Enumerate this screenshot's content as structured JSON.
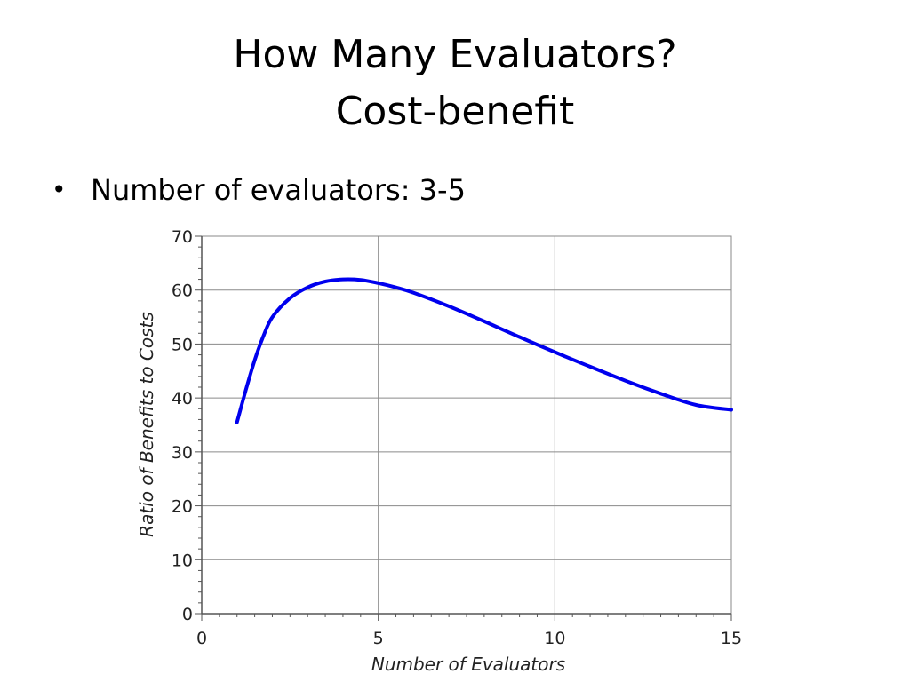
{
  "slide": {
    "title_line1": "How Many Evaluators?",
    "title_line2": "Cost-benefit",
    "bullets": [
      {
        "marker": "•",
        "text": "Number of evaluators: 3-5"
      }
    ]
  },
  "chart_data": {
    "type": "line",
    "title": "",
    "xlabel": "Number of Evaluators",
    "ylabel": "Ratio of Benefits to Costs",
    "xlim": [
      0,
      15
    ],
    "ylim": [
      0,
      70
    ],
    "xticks": [
      0,
      5,
      10,
      15
    ],
    "yticks": [
      0,
      10,
      20,
      30,
      40,
      50,
      60,
      70
    ],
    "grid": true,
    "legend": "none",
    "series": [
      {
        "color": "#0000ee",
        "x": [
          1,
          1.25,
          1.5,
          1.75,
          2,
          2.5,
          3,
          3.5,
          4,
          4.5,
          5,
          5.5,
          6,
          7,
          8,
          9,
          10,
          11,
          12,
          13,
          14,
          15
        ],
        "y": [
          35.5,
          41.5,
          47,
          51.5,
          55,
          58.5,
          60.5,
          61.6,
          62,
          61.9,
          61.3,
          60.5,
          59.5,
          57,
          54.2,
          51.3,
          48.5,
          45.8,
          43.2,
          40.8,
          38.7,
          37.8
        ]
      }
    ]
  }
}
